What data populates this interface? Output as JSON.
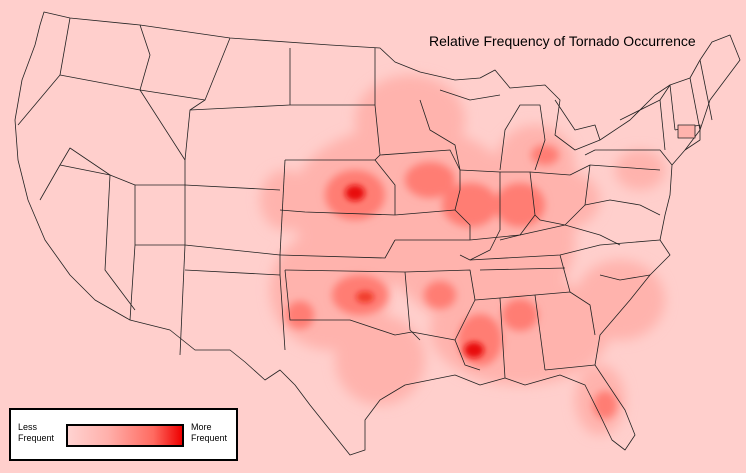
{
  "map": {
    "title": "Relative Frequency of Tornado Occurrence",
    "background_color": "#ffcfcc",
    "boundary_color": "#222222",
    "heat_color_low": "#ffb3ad",
    "heat_color_mid": "#ff7d73",
    "heat_color_high": "#e8100a"
  },
  "legend": {
    "less_label": "Less\nFrequent",
    "more_label": "More\nFrequent"
  }
}
